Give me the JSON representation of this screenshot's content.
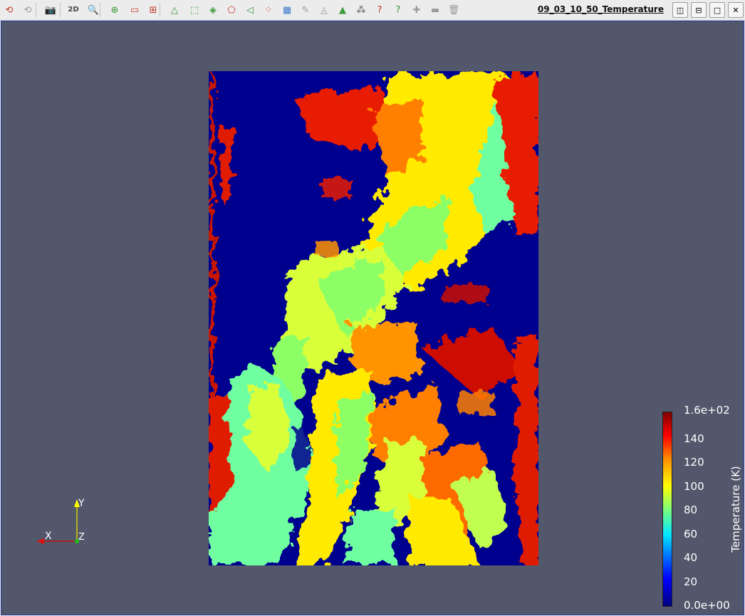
{
  "toolbar": {
    "buttons": [
      {
        "name": "reset-camera-icon",
        "glyph": "⟲",
        "color": "#c0392b"
      },
      {
        "name": "reset-camera-closest-icon",
        "glyph": "⟲",
        "color": "#9a9a9a"
      },
      {
        "name": "capture-screenshot-icon",
        "glyph": "📷",
        "color": "#555555"
      },
      {
        "name": "toggle-2d-3d-button",
        "glyph": "2D",
        "color": "#444444"
      },
      {
        "name": "zoom-to-box-icon",
        "glyph": "🔍",
        "color": "#555555"
      },
      {
        "name": "interactive-select-icon",
        "glyph": "⊕",
        "color": "#3a9a3a"
      },
      {
        "name": "select-cells-on-icon",
        "glyph": "▭",
        "color": "#c0392b"
      },
      {
        "name": "select-points-on-icon",
        "glyph": "⊞",
        "color": "#c0392b"
      },
      {
        "name": "select-cells-frustum-icon",
        "glyph": "△",
        "color": "#3a9a3a"
      },
      {
        "name": "select-points-frustum-icon",
        "glyph": "⬚",
        "color": "#3a9a3a"
      },
      {
        "name": "select-block-icon",
        "glyph": "◈",
        "color": "#3a9a3a"
      },
      {
        "name": "select-polygon-cells-icon",
        "glyph": "⬠",
        "color": "#c0392b"
      },
      {
        "name": "select-polygon-points-icon",
        "glyph": "◁",
        "color": "#3a9a3a"
      },
      {
        "name": "select-cells-with-polygon-icon",
        "glyph": "⁘",
        "color": "#c0392b"
      },
      {
        "name": "hover-points-icon",
        "glyph": "▦",
        "color": "#3a7acc"
      },
      {
        "name": "hover-cells-icon",
        "glyph": "✎",
        "color": "#9a9a9a"
      },
      {
        "name": "extract-selection-icon",
        "glyph": "◬",
        "color": "#9a9a9a"
      },
      {
        "name": "grow-selection-icon",
        "glyph": "▲",
        "color": "#3a9a3a"
      },
      {
        "name": "shrink-selection-icon",
        "glyph": "⁂",
        "color": "#555555"
      },
      {
        "name": "hover-cells-query-icon",
        "glyph": "?",
        "color": "#c0392b"
      },
      {
        "name": "hover-points-query-icon",
        "glyph": "?",
        "color": "#3a9a3a"
      },
      {
        "name": "add-selection-icon",
        "glyph": "✚",
        "color": "#9a9a9a"
      },
      {
        "name": "subtract-selection-icon",
        "glyph": "▬",
        "color": "#9a9a9a"
      },
      {
        "name": "clear-selection-icon",
        "glyph": "🗑",
        "color": "#9a9a9a"
      }
    ],
    "view_title": "09_03_10_50_Temperature",
    "window_buttons": [
      {
        "name": "split-horizontal-icon",
        "glyph": "◫"
      },
      {
        "name": "split-vertical-icon",
        "glyph": "⊟"
      },
      {
        "name": "maximize-icon",
        "glyph": "□"
      },
      {
        "name": "close-icon",
        "glyph": "✕"
      }
    ]
  },
  "viewport": {
    "background": "#52576b",
    "image": {
      "background_color": "#00008f",
      "colormap": "jet"
    }
  },
  "colorbar": {
    "title": "Temperature (K)",
    "labels": [
      "1.6e+02",
      "140",
      "120",
      "100",
      "80",
      "60",
      "40",
      "20",
      "0.0e+00"
    ],
    "range": [
      0,
      160
    ]
  },
  "axes": {
    "x": "X",
    "y": "Y",
    "z": "Z"
  }
}
